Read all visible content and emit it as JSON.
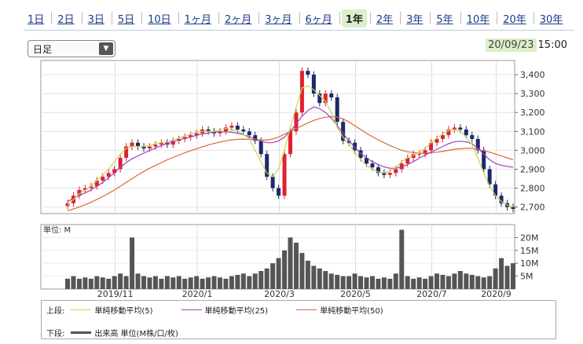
{
  "tabs": [
    {
      "label": "1日"
    },
    {
      "label": "2日"
    },
    {
      "label": "3日"
    },
    {
      "label": "5日"
    },
    {
      "label": "10日"
    },
    {
      "label": "1ヶ月"
    },
    {
      "label": "2ヶ月"
    },
    {
      "label": "3ヶ月"
    },
    {
      "label": "6ヶ月"
    },
    {
      "label": "1年",
      "active": true
    },
    {
      "label": "2年"
    },
    {
      "label": "3年"
    },
    {
      "label": "5年"
    },
    {
      "label": "10年"
    },
    {
      "label": "20年"
    },
    {
      "label": "30年"
    }
  ],
  "period_select": {
    "value": "日足"
  },
  "timestamp": {
    "date": "20/09/23",
    "time": "15:00"
  },
  "legend": {
    "upper_label": "上段:",
    "lower_label": "下段:",
    "ma": [
      {
        "name": "単純移動平均(5)",
        "color": "#c8d84a"
      },
      {
        "name": "単純移動平均(25)",
        "color": "#a040c0"
      },
      {
        "name": "単純移動平均(50)",
        "color": "#d86a3a"
      }
    ],
    "volume": {
      "name": "出来高 単位(M株/口/枚)",
      "color": "#555555"
    }
  },
  "chart_data": [
    {
      "type": "candlestick",
      "y_ticks": [
        "3,400",
        "3,300",
        "3,200",
        "3,100",
        "3,000",
        "2,900",
        "2,800",
        "2,700"
      ],
      "y_tick_values": [
        3400,
        3300,
        3200,
        3100,
        3000,
        2900,
        2800,
        2700
      ],
      "ylim": [
        2665,
        3475
      ],
      "x_ticks": [
        "2019/11",
        "2020/1",
        "2020/3",
        "2020/5",
        "2020/7",
        "2020/9"
      ],
      "up_color": "#e02030",
      "down_color": "#1a2a6a",
      "close": [
        2720,
        2760,
        2790,
        2800,
        2810,
        2840,
        2860,
        2880,
        2900,
        2960,
        3020,
        3040,
        3020,
        3010,
        3020,
        3030,
        3040,
        3030,
        3050,
        3060,
        3070,
        3080,
        3090,
        3110,
        3100,
        3090,
        3100,
        3120,
        3130,
        3110,
        3100,
        3080,
        3050,
        2980,
        2860,
        2800,
        2760,
        2980,
        3100,
        3200,
        3420,
        3400,
        3300,
        3250,
        3300,
        3280,
        3150,
        3050,
        3040,
        3000,
        2960,
        2930,
        2910,
        2880,
        2870,
        2880,
        2900,
        2930,
        2960,
        2980,
        2980,
        3000,
        3040,
        3060,
        3080,
        3110,
        3120,
        3110,
        3080,
        3060,
        3000,
        2900,
        2820,
        2760,
        2720,
        2700,
        2690
      ],
      "ma5": [
        2710,
        2740,
        2770,
        2790,
        2810,
        2840,
        2870,
        2900,
        2940,
        2980,
        3010,
        3020,
        3020,
        3020,
        3025,
        3035,
        3040,
        3045,
        3055,
        3065,
        3075,
        3085,
        3095,
        3100,
        3100,
        3100,
        3110,
        3115,
        3110,
        3100,
        3085,
        3060,
        3000,
        2940,
        2880,
        2860,
        2900,
        3000,
        3120,
        3230,
        3330,
        3340,
        3320,
        3290,
        3260,
        3200,
        3120,
        3070,
        3030,
        2990,
        2950,
        2920,
        2900,
        2885,
        2880,
        2890,
        2910,
        2940,
        2960,
        2975,
        2990,
        3010,
        3040,
        3065,
        3085,
        3105,
        3110,
        3100,
        3070,
        3030,
        2960,
        2880,
        2810,
        2760,
        2730,
        2710,
        2700
      ],
      "ma25": [
        2730,
        2745,
        2760,
        2775,
        2790,
        2810,
        2830,
        2855,
        2880,
        2910,
        2935,
        2955,
        2970,
        2985,
        3000,
        3012,
        3025,
        3035,
        3045,
        3055,
        3063,
        3071,
        3079,
        3086,
        3092,
        3096,
        3098,
        3098,
        3095,
        3090,
        3082,
        3072,
        3060,
        3048,
        3040,
        3040,
        3050,
        3070,
        3100,
        3140,
        3180,
        3210,
        3230,
        3220,
        3200,
        3170,
        3130,
        3090,
        3050,
        3015,
        2985,
        2960,
        2940,
        2925,
        2912,
        2905,
        2905,
        2912,
        2925,
        2940,
        2958,
        2975,
        2990,
        3005,
        3020,
        3035,
        3045,
        3048,
        3045,
        3035,
        3010,
        2980,
        2950,
        2930,
        2920,
        2915,
        2910
      ],
      "ma50": [
        2680,
        2690,
        2700,
        2712,
        2725,
        2740,
        2756,
        2772,
        2790,
        2810,
        2830,
        2850,
        2870,
        2888,
        2905,
        2920,
        2935,
        2950,
        2962,
        2975,
        2987,
        2998,
        3008,
        3018,
        3028,
        3036,
        3044,
        3050,
        3055,
        3058,
        3059,
        3058,
        3056,
        3054,
        3054,
        3060,
        3070,
        3085,
        3100,
        3115,
        3130,
        3145,
        3158,
        3168,
        3175,
        3178,
        3175,
        3165,
        3150,
        3130,
        3110,
        3090,
        3072,
        3055,
        3040,
        3025,
        3012,
        3000,
        2992,
        2988,
        2985,
        2985,
        2987,
        2990,
        2995,
        3000,
        3005,
        3008,
        3010,
        3010,
        3005,
        2998,
        2990,
        2980,
        2970,
        2960,
        2950
      ]
    },
    {
      "type": "bar",
      "unit_label": "単位: M",
      "y_ticks": [
        "20M",
        "15M",
        "10M",
        "5M"
      ],
      "y_tick_values": [
        20,
        15,
        10,
        5
      ],
      "ylim": [
        0,
        25
      ],
      "color": "#555555",
      "values": [
        4,
        5,
        4,
        4.5,
        4,
        5,
        4.5,
        4,
        5,
        6,
        5,
        20,
        6,
        5,
        4.5,
        5,
        4,
        5,
        4.5,
        5,
        4,
        4.5,
        5,
        4,
        4.5,
        5,
        4.5,
        4,
        5,
        5.5,
        6,
        5,
        6,
        7,
        8,
        10,
        12,
        15,
        20,
        18,
        14,
        11,
        9,
        8,
        7,
        6,
        5.5,
        5,
        5,
        6,
        5,
        4.5,
        5,
        4,
        4.5,
        4,
        6,
        23,
        5,
        4,
        4.5,
        4,
        5,
        6,
        5.5,
        5,
        6,
        7,
        6,
        5.5,
        5,
        4.5,
        5,
        8,
        12,
        9,
        10
      ]
    }
  ]
}
